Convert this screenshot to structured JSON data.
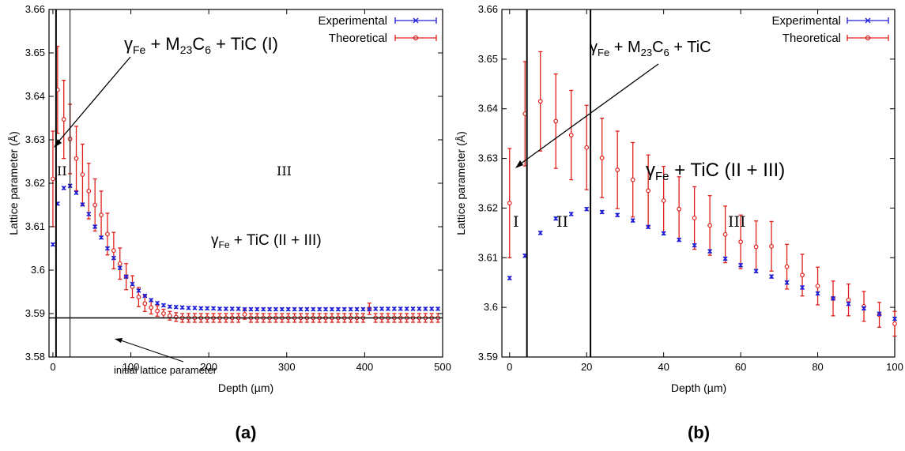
{
  "chart_data": [
    {
      "panel_label": "(a)",
      "type": "scatter",
      "xlabel": "Depth (µm)",
      "ylabel": "Lattice parameter (Å)",
      "xlim": [
        -5,
        500
      ],
      "ylim": [
        3.58,
        3.66
      ],
      "xticks": [
        0,
        100,
        200,
        300,
        400,
        500
      ],
      "yticks": [
        3.58,
        3.59,
        3.6,
        3.61,
        3.62,
        3.63,
        3.64,
        3.65,
        3.66
      ],
      "ytick_labels": [
        "3.58",
        "3.59",
        "3.6",
        "3.61",
        "3.62",
        "3.63",
        "3.64",
        "3.65",
        "3.66"
      ],
      "grid": false,
      "legend_position": "top-right",
      "series": [
        {
          "name": "Experimental",
          "color": "#1f1fd6",
          "marker": "x",
          "x": [
            0,
            6,
            14,
            22,
            30,
            38,
            46,
            54,
            62,
            70,
            78,
            86,
            94,
            102,
            110,
            118,
            126,
            134,
            142,
            150,
            158,
            166,
            174,
            182,
            190,
            198,
            206,
            214,
            222,
            230,
            238,
            246,
            254,
            262,
            270,
            278,
            286,
            294,
            302,
            310,
            318,
            326,
            334,
            342,
            350,
            358,
            366,
            374,
            382,
            390,
            398,
            406,
            414,
            422,
            430,
            438,
            446,
            454,
            462,
            470,
            478,
            486,
            494
          ],
          "y": [
            3.6059,
            3.6153,
            3.6189,
            3.6194,
            3.6178,
            3.6151,
            3.6129,
            3.61,
            3.6075,
            3.605,
            3.6028,
            3.6005,
            3.5985,
            3.5968,
            3.5953,
            3.5941,
            3.5931,
            3.5924,
            3.5919,
            3.5916,
            3.5915,
            3.5914,
            3.5913,
            3.5913,
            3.5912,
            3.5912,
            3.5912,
            3.5911,
            3.5911,
            3.5911,
            3.5911,
            3.591,
            3.591,
            3.591,
            3.591,
            3.591,
            3.591,
            3.591,
            3.591,
            3.591,
            3.591,
            3.591,
            3.591,
            3.591,
            3.591,
            3.591,
            3.591,
            3.591,
            3.591,
            3.591,
            3.591,
            3.591,
            3.5911,
            3.5911,
            3.5911,
            3.5911,
            3.5911,
            3.5911,
            3.5911,
            3.5911,
            3.5911,
            3.5911,
            3.5911
          ],
          "err": 0.0003
        },
        {
          "name": "Theoretical",
          "color": "#e0201b",
          "marker": "o",
          "x": [
            0,
            6,
            14,
            22,
            30,
            38,
            46,
            54,
            62,
            70,
            78,
            86,
            94,
            102,
            110,
            118,
            126,
            134,
            142,
            150,
            158,
            166,
            174,
            182,
            190,
            198,
            206,
            214,
            222,
            230,
            238,
            246,
            254,
            262,
            270,
            278,
            286,
            294,
            302,
            310,
            318,
            326,
            334,
            342,
            350,
            358,
            366,
            374,
            382,
            390,
            398,
            406,
            414,
            422,
            430,
            438,
            446,
            454,
            462,
            470,
            478,
            486,
            494
          ],
          "y": [
            3.621,
            3.6415,
            3.6347,
            3.6302,
            3.6257,
            3.622,
            3.6182,
            3.615,
            3.6127,
            3.6083,
            3.6045,
            3.6015,
            3.5985,
            3.5962,
            3.5938,
            3.5923,
            3.5914,
            3.5906,
            3.59,
            3.5895,
            3.5892,
            3.589,
            3.589,
            3.589,
            3.589,
            3.589,
            3.589,
            3.589,
            3.589,
            3.589,
            3.589,
            3.5898,
            3.589,
            3.589,
            3.589,
            3.589,
            3.589,
            3.589,
            3.589,
            3.589,
            3.589,
            3.589,
            3.589,
            3.589,
            3.589,
            3.589,
            3.589,
            3.589,
            3.589,
            3.589,
            3.589,
            3.5911,
            3.589,
            3.589,
            3.589,
            3.589,
            3.589,
            3.589,
            3.589,
            3.589,
            3.589,
            3.589,
            3.589
          ],
          "err": [
            0.011,
            0.01,
            0.009,
            0.008,
            0.0074,
            0.007,
            0.0064,
            0.006,
            0.0055,
            0.0048,
            0.0042,
            0.0036,
            0.003,
            0.0025,
            0.0022,
            0.0018,
            0.0015,
            0.0012,
            0.001,
            0.001,
            0.001,
            0.001,
            0.001,
            0.001,
            0.001,
            0.001,
            0.001,
            0.001,
            0.001,
            0.001,
            0.001,
            0.0011,
            0.001,
            0.001,
            0.001,
            0.001,
            0.001,
            0.001,
            0.001,
            0.001,
            0.001,
            0.001,
            0.001,
            0.001,
            0.001,
            0.001,
            0.001,
            0.001,
            0.001,
            0.001,
            0.001,
            0.0013,
            0.001,
            0.001,
            0.001,
            0.001,
            0.001,
            0.001,
            0.001,
            0.001,
            0.001,
            0.001,
            0.001
          ]
        }
      ],
      "vlines": [
        4,
        22
      ],
      "hlines": [
        3.589
      ],
      "annotations": {
        "phase_main": "γFe + M23C6 + TiC (I)",
        "phase_second": "γFe + TiC (II + III)",
        "region_II": "II",
        "region_III": "III",
        "initial_label": "initial lattice parameter"
      }
    },
    {
      "panel_label": "(b)",
      "type": "scatter",
      "xlabel": "Depth (µm)",
      "ylabel": "Lattice parameter (Å)",
      "xlim": [
        -2,
        100
      ],
      "ylim": [
        3.59,
        3.66
      ],
      "xticks": [
        0,
        20,
        40,
        60,
        80,
        100
      ],
      "yticks": [
        3.59,
        3.6,
        3.61,
        3.62,
        3.63,
        3.64,
        3.65,
        3.66
      ],
      "ytick_labels": [
        "3.59",
        "3.6",
        "3.61",
        "3.62",
        "3.63",
        "3.64",
        "3.65",
        "3.66"
      ],
      "grid": false,
      "legend_position": "top-right",
      "series": [
        {
          "name": "Experimental",
          "color": "#1f1fd6",
          "marker": "x",
          "x": [
            0,
            4,
            8,
            12,
            16,
            20,
            24,
            28,
            32,
            36,
            40,
            44,
            48,
            52,
            56,
            60,
            64,
            68,
            72,
            76,
            80,
            84,
            88,
            92,
            96,
            100
          ],
          "y": [
            3.6059,
            3.6104,
            3.615,
            3.6179,
            3.6188,
            3.6198,
            3.6192,
            3.6186,
            3.6175,
            3.6162,
            3.6149,
            3.6136,
            3.6125,
            3.6113,
            3.6098,
            3.6085,
            3.6073,
            3.6062,
            3.605,
            3.604,
            3.6028,
            3.6018,
            3.6007,
            3.5998,
            3.5987,
            3.5977
          ],
          "err": 0.0003
        },
        {
          "name": "Theoretical",
          "color": "#e0201b",
          "marker": "o",
          "x": [
            0,
            4,
            8,
            12,
            16,
            20,
            24,
            28,
            32,
            36,
            40,
            44,
            48,
            52,
            56,
            60,
            64,
            68,
            72,
            76,
            80,
            84,
            88,
            92,
            96,
            100
          ],
          "y": [
            3.621,
            3.639,
            3.6415,
            3.6375,
            3.6347,
            3.6322,
            3.6301,
            3.6277,
            3.6257,
            3.6235,
            3.6215,
            3.6198,
            3.618,
            3.6165,
            3.6147,
            3.6132,
            3.6122,
            3.6123,
            3.6082,
            3.6065,
            3.6043,
            3.6018,
            3.6015,
            3.6002,
            3.5985,
            3.5967
          ],
          "err": [
            0.011,
            0.0105,
            0.01,
            0.0095,
            0.009,
            0.0085,
            0.008,
            0.0078,
            0.0075,
            0.0072,
            0.0069,
            0.0065,
            0.0063,
            0.006,
            0.0057,
            0.0054,
            0.0052,
            0.005,
            0.0045,
            0.0042,
            0.0038,
            0.0035,
            0.0032,
            0.003,
            0.0025,
            0.0025
          ]
        }
      ],
      "vlines": [
        4.5,
        21
      ],
      "annotations": {
        "phase_main": "γFe + M23C6 + TiC",
        "phase_second": "γFe + TiC (II + III)",
        "region_I": "I",
        "region_II": "II",
        "region_III": "III"
      }
    }
  ]
}
